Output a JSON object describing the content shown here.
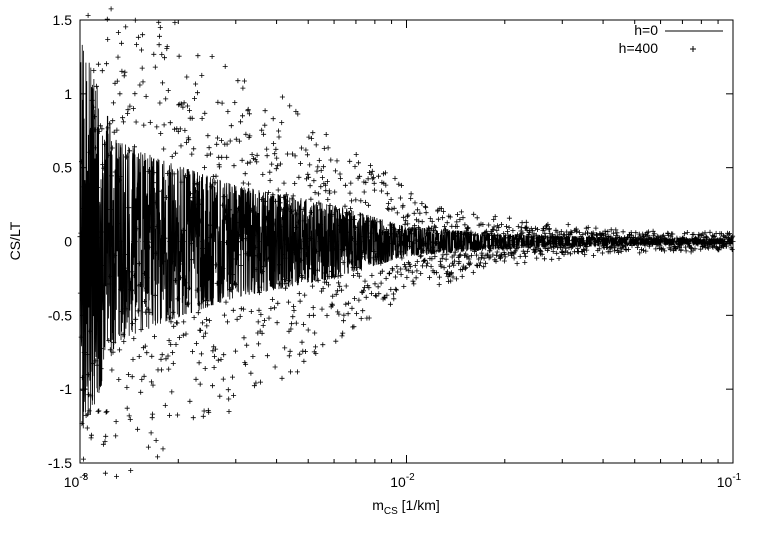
{
  "chart_data": {
    "type": "line",
    "xscale": "log",
    "xlim": [
      0.001,
      0.1
    ],
    "ylim": [
      -1.5,
      1.5
    ],
    "ylabel": "CS/LT",
    "xlabel": {
      "base": "m",
      "sub": "CS",
      "unit": " [1/km]"
    },
    "xticks": [
      {
        "value": 0.001,
        "base": "10",
        "exp": "-3"
      },
      {
        "value": 0.01,
        "base": "10",
        "exp": "-2"
      },
      {
        "value": 0.1,
        "base": "10",
        "exp": "-1"
      }
    ],
    "yticks": [
      {
        "value": -1.5,
        "label": "-1.5"
      },
      {
        "value": -1,
        "label": "-1"
      },
      {
        "value": -0.5,
        "label": "-0.5"
      },
      {
        "value": 0,
        "label": "0"
      },
      {
        "value": 0.5,
        "label": "0.5"
      },
      {
        "value": 1,
        "label": "1"
      },
      {
        "value": 1.5,
        "label": "1.5"
      }
    ],
    "zero_line": true,
    "legend": {
      "position": "top-right"
    },
    "series": [
      {
        "name": "h=0",
        "style": "line",
        "model": "damped cosine in 1/m",
        "period_1_over_m": 465,
        "phase": 0.9,
        "envelope": [
          [
            0.001,
            1.39
          ],
          [
            0.0013,
            0.68
          ],
          [
            0.0018,
            0.55
          ],
          [
            0.003,
            0.38
          ],
          [
            0.006,
            0.25
          ],
          [
            0.01,
            0.1
          ],
          [
            0.02,
            0.05
          ],
          [
            0.05,
            0.025
          ],
          [
            0.1,
            0.02
          ]
        ],
        "extrema": [
          {
            "x": 0.00107,
            "y": -1.39
          },
          {
            "x": 0.00131,
            "y": 0.68
          },
          {
            "x": 0.00155,
            "y": -0.89
          },
          {
            "x": 0.00182,
            "y": 0.55
          },
          {
            "x": 0.00206,
            "y": -0.64
          },
          {
            "x": 0.00228,
            "y": 0.44
          }
        ]
      },
      {
        "name": "h=400",
        "style": "points",
        "marker": "+",
        "model": "damped cosine in 1/m plus slow modulation",
        "period_1_over_m": 465,
        "phase": 1.55,
        "envelope": [
          [
            0.001,
            1.16
          ],
          [
            0.0013,
            1.3
          ],
          [
            0.0018,
            1.13
          ],
          [
            0.003,
            0.86
          ],
          [
            0.006,
            0.55
          ],
          [
            0.01,
            0.25
          ],
          [
            0.02,
            0.1
          ],
          [
            0.05,
            0.04
          ],
          [
            0.1,
            0.025
          ]
        ],
        "extrema": [
          {
            "x": 0.00104,
            "y": -1.13
          },
          {
            "x": 0.00131,
            "y": 1.3
          },
          {
            "x": 0.00155,
            "y": -0.52
          },
          {
            "x": 0.00182,
            "y": 1.12
          },
          {
            "x": 0.00206,
            "y": -0.25
          },
          {
            "x": 0.00228,
            "y": 0.99
          }
        ]
      }
    ]
  }
}
